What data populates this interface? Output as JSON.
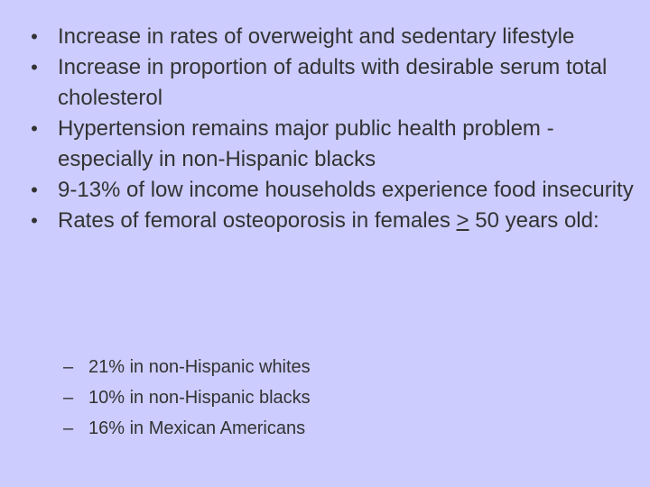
{
  "slide": {
    "bullets": [
      {
        "text": "Increase in rates of overweight and sedentary lifestyle"
      },
      {
        "text": "Increase in proportion of adults with desirable serum total cholesterol"
      },
      {
        "text": "Hypertension remains major public health problem - especially in non-Hispanic blacks"
      },
      {
        "text": "9-13% of low income households experience food insecurity"
      },
      {
        "text_before": "Rates of femoral osteoporosis in females ",
        "symbol": ">",
        "text_after": " 50 years old:"
      }
    ],
    "bullet_marker": "•",
    "sub_marker": "–",
    "sub_bullets": [
      {
        "text": "21% in non-Hispanic whites"
      },
      {
        "text": "10% in non-Hispanic blacks"
      },
      {
        "text": "16% in Mexican Americans"
      }
    ],
    "colors": {
      "background": "#ccccff",
      "text": "#333333"
    }
  }
}
